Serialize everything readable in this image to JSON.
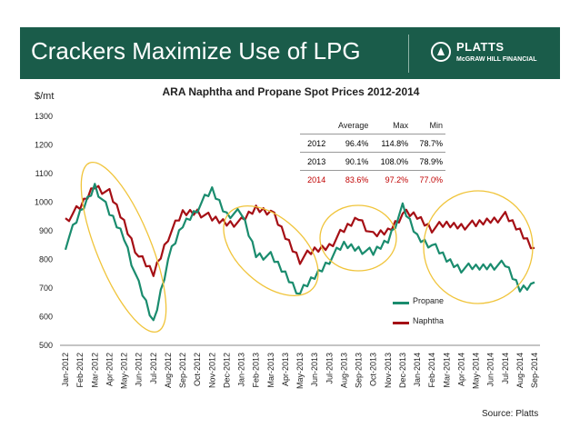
{
  "header": {
    "title": "Crackers Maximize Use of LPG"
  },
  "logo": {
    "name": "PLATTS",
    "subtitle": "McGRAW HILL FINANCIAL"
  },
  "colors": {
    "header_bg": "#1a5c4a",
    "propane": "#1a8c6e",
    "naphtha": "#a50f15",
    "ellipse": "#f0c43a",
    "highlight": "#c00000"
  },
  "source": "Source: Platts",
  "stats_table": {
    "headers": [
      "",
      "Average",
      "Max",
      "Min"
    ],
    "rows": [
      {
        "year": "2012",
        "avg": "96.4%",
        "max": "114.8%",
        "min": "78.7%"
      },
      {
        "year": "2013",
        "avg": "90.1%",
        "max": "108.0%",
        "min": "78.9%"
      },
      {
        "year": "2014",
        "avg": "83.6%",
        "max": "97.2%",
        "min": "77.0%"
      }
    ]
  },
  "chart_data": {
    "type": "line",
    "title": "ARA Naphtha and Propane Spot Prices 2012-2014",
    "ylabel": "$/mt",
    "xlabel": "",
    "ylim": [
      500,
      1300
    ],
    "yticks": [
      500,
      600,
      700,
      800,
      900,
      1000,
      1100,
      1200,
      1300
    ],
    "x": [
      "Jan-2012",
      "Feb-2012",
      "Mar-2012",
      "Apr-2012",
      "May-2012",
      "Jun-2012",
      "Jul-2012",
      "Aug-2012",
      "Sep-2012",
      "Oct-2012",
      "Nov-2012",
      "Dec-2012",
      "Jan-2013",
      "Feb-2013",
      "Mar-2013",
      "Apr-2013",
      "May-2013",
      "Jun-2013",
      "Jul-2013",
      "Aug-2013",
      "Sep-2013",
      "Oct-2013",
      "Nov-2013",
      "Dec-2013",
      "Jan-2014",
      "Feb-2014",
      "Mar-2014",
      "Apr-2014",
      "May-2014",
      "Jun-2014",
      "Jul-2014",
      "Aug-2014",
      "Sep-2014"
    ],
    "series": [
      {
        "name": "Propane",
        "values": [
          850,
          960,
          1060,
          960,
          880,
          710,
          580,
          800,
          920,
          980,
          1040,
          960,
          960,
          820,
          810,
          750,
          680,
          740,
          800,
          850,
          840,
          820,
          870,
          980,
          880,
          850,
          800,
          770,
          770,
          780,
          780,
          700,
          720
        ]
      },
      {
        "name": "Naphtha",
        "values": [
          940,
          980,
          1060,
          1030,
          930,
          810,
          750,
          880,
          960,
          970,
          940,
          930,
          930,
          980,
          970,
          880,
          800,
          830,
          850,
          900,
          950,
          880,
          900,
          960,
          950,
          910,
          920,
          920,
          920,
          940,
          950,
          900,
          840
        ]
      }
    ],
    "legend": "bottom-right",
    "grid": false
  }
}
